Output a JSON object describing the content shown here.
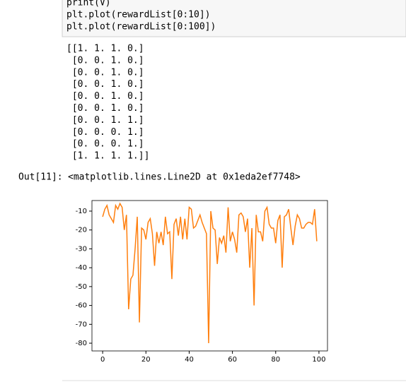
{
  "code": {
    "lines": [
      "print(V)",
      "plt.plot(rewardList[0:10])",
      "plt.plot(rewardList[0:100])"
    ]
  },
  "stdout": {
    "lines": [
      "[[1. 1. 1. 0.]",
      " [0. 0. 1. 0.]",
      " [0. 0. 1. 0.]",
      " [0. 0. 1. 0.]",
      " [0. 0. 1. 0.]",
      " [0. 0. 1. 0.]",
      " [0. 0. 1. 1.]",
      " [0. 0. 0. 1.]",
      " [0. 0. 0. 1.]",
      " [1. 1. 1. 1.]]"
    ]
  },
  "result": {
    "prompt": "Out[11]:",
    "text": "<matplotlib.lines.Line2D at 0x1eda2ef7748>"
  },
  "chart_data": {
    "type": "line",
    "color": "#ff7f0e",
    "xlim": [
      -4.95,
      103.95
    ],
    "ylim": [
      -84.1,
      -4.4
    ],
    "xticks": [
      0,
      20,
      40,
      60,
      80,
      100
    ],
    "yticks": [
      -10,
      -20,
      -30,
      -40,
      -50,
      -60,
      -70,
      -80
    ],
    "x": [
      0,
      1,
      2,
      3,
      4,
      5,
      6,
      7,
      8,
      9,
      10,
      11,
      12,
      13,
      14,
      15,
      16,
      17,
      18,
      19,
      20,
      21,
      22,
      23,
      24,
      25,
      26,
      27,
      28,
      29,
      30,
      31,
      32,
      33,
      34,
      35,
      36,
      37,
      38,
      39,
      40,
      41,
      42,
      43,
      44,
      45,
      46,
      47,
      48,
      49,
      50,
      51,
      52,
      53,
      54,
      55,
      56,
      57,
      58,
      59,
      60,
      61,
      62,
      63,
      64,
      65,
      66,
      67,
      68,
      69,
      70,
      71,
      72,
      73,
      74,
      75,
      76,
      77,
      78,
      79,
      80,
      81,
      82,
      83,
      84,
      85,
      86,
      87,
      88,
      89,
      90,
      91,
      92,
      93,
      94,
      95,
      96,
      97,
      98,
      99
    ],
    "values": [
      -13,
      -9,
      -7,
      -12,
      -14,
      -16,
      -7,
      -9,
      -6,
      -8,
      -20,
      -12,
      -62,
      -46,
      -44,
      -30,
      -13,
      -69,
      -19,
      -20,
      -25,
      -16,
      -14,
      -22,
      -39,
      -21,
      -27,
      -21,
      -28,
      -13,
      -22,
      -21,
      -46,
      -17,
      -14,
      -23,
      -13,
      -25,
      -14,
      -25,
      -8,
      -9,
      -19,
      -18,
      -15,
      -12,
      -16,
      -19,
      -22,
      -80,
      -10,
      -19,
      -20,
      -38,
      -24,
      -27,
      -23,
      -32,
      -8,
      -26,
      -21,
      -25,
      -32,
      -12,
      -11,
      -13,
      -21,
      -14,
      -40,
      -19,
      -60,
      -12,
      -21,
      -21,
      -26,
      -10,
      -8,
      -17,
      -19,
      -19,
      -27,
      -15,
      -12,
      -40,
      -13,
      -12,
      -9,
      -19,
      -28,
      -18,
      -12,
      -14,
      -19,
      -19,
      -17,
      -16,
      -16,
      -17,
      -9,
      -26
    ]
  }
}
